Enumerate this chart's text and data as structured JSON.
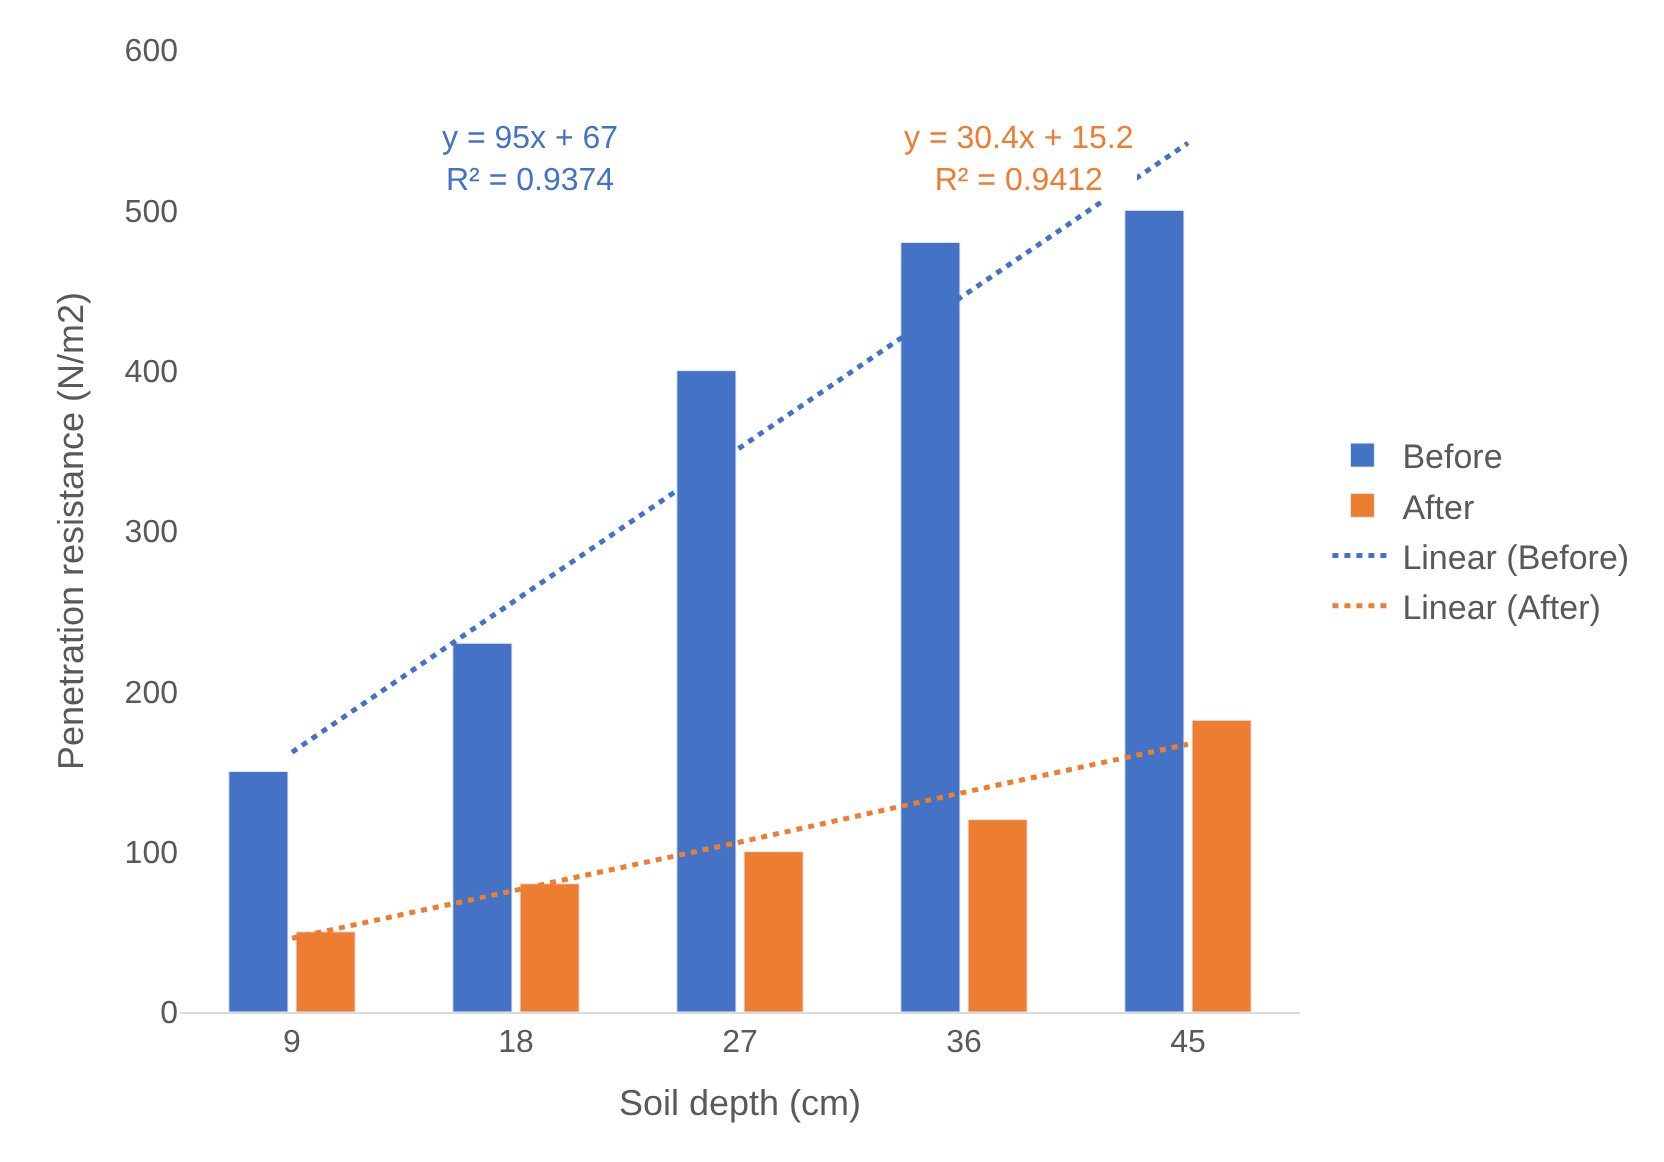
{
  "chart_data": {
    "type": "bar",
    "xlabel": "Soil depth (cm)",
    "ylabel": "Penetration resistance (N/m2)",
    "categories": [
      "9",
      "18",
      "27",
      "36",
      "45"
    ],
    "series": [
      {
        "name": "Before",
        "color": "#4472c4",
        "values": [
          150,
          230,
          400,
          480,
          500
        ]
      },
      {
        "name": "After",
        "color": "#ed7d31",
        "values": [
          50,
          80,
          100,
          120,
          182
        ]
      },
      {
        "name": "Linear (Before)",
        "type": "line",
        "color": "#4472c4",
        "line_style": "dotted",
        "marker": "none",
        "values": [
          162,
          257,
          352,
          447,
          542
        ]
      },
      {
        "name": "Linear (After)",
        "type": "line",
        "color": "#ed7d31",
        "line_style": "dotted",
        "marker": "none",
        "values": [
          46,
          76,
          106,
          137,
          167
        ]
      }
    ],
    "annotations": [
      "y = 95x + 67\nR² = 0.9374",
      "y = 30.4x + 15.2\nR² = 0.9412"
    ],
    "ylim": [
      0,
      600
    ],
    "yticks": [
      0,
      100,
      200,
      300,
      400,
      500,
      600
    ],
    "legend": "right"
  }
}
